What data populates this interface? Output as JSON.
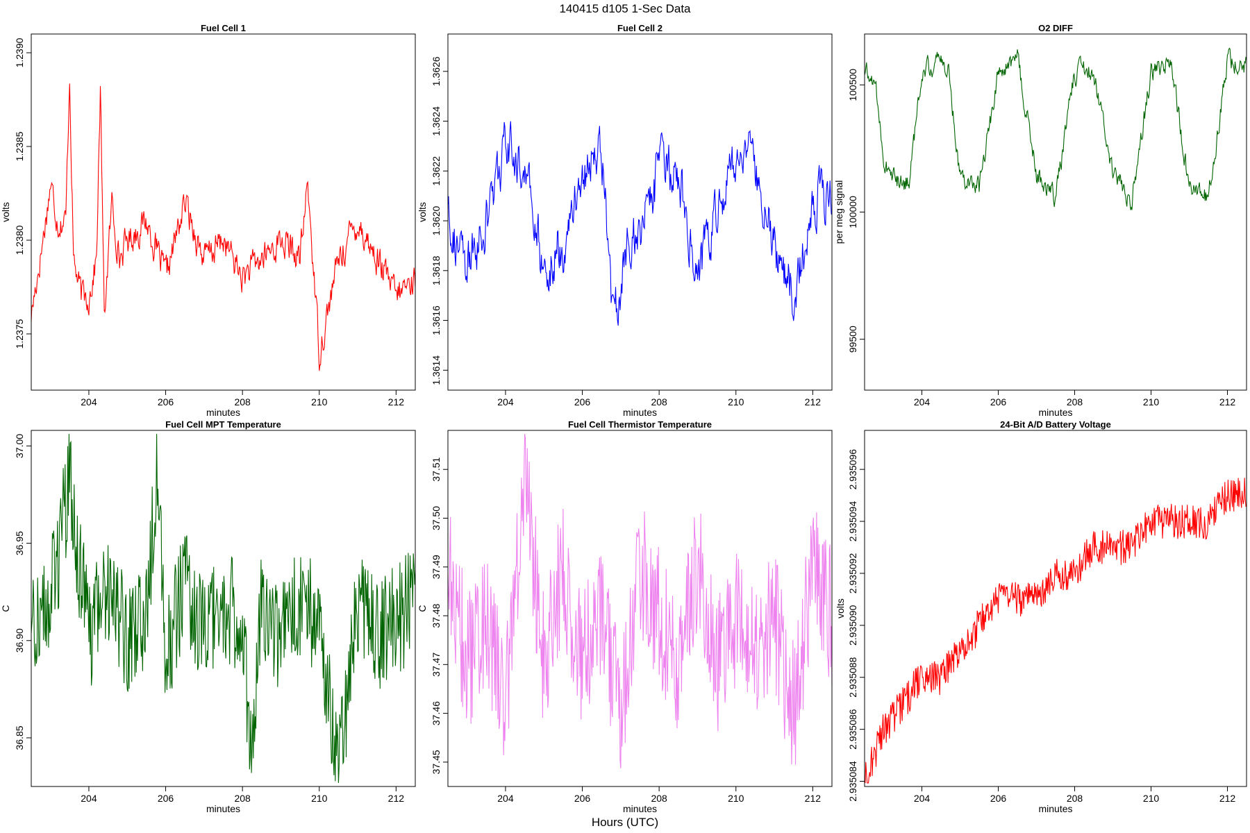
{
  "figure": {
    "title": "140415   d105   1-Sec Data",
    "xlabel": "Hours (UTC)"
  },
  "chart_data": [
    {
      "type": "line",
      "title": "Fuel Cell 1",
      "xlabel": "minutes",
      "ylabel": "volts",
      "color": "#ff0000",
      "xlim": [
        202.5,
        212.5
      ],
      "ylim": [
        1.2372,
        1.2391
      ],
      "xticks": [
        204,
        206,
        208,
        210,
        212
      ],
      "yticks": [
        1.2375,
        1.238,
        1.2385,
        1.239
      ],
      "ytick_labels": [
        "1.2375",
        "1.2380",
        "1.2385",
        "1.2390"
      ],
      "x": [
        202.5,
        202.8,
        203.0,
        203.2,
        203.4,
        203.5,
        203.6,
        203.8,
        204.0,
        204.2,
        204.3,
        204.4,
        204.6,
        204.8,
        205.0,
        205.5,
        206.0,
        206.5,
        207.0,
        207.5,
        208.0,
        208.5,
        209.0,
        209.5,
        209.7,
        210.0,
        210.5,
        211.0,
        211.5,
        212.0,
        212.5
      ],
      "values": [
        1.2376,
        1.238,
        1.2383,
        1.2381,
        1.2381,
        1.2389,
        1.2379,
        1.2377,
        1.2377,
        1.2379,
        1.2388,
        1.2376,
        1.2382,
        1.2379,
        1.238,
        1.2381,
        1.2378,
        1.2382,
        1.2379,
        1.238,
        1.2378,
        1.2379,
        1.238,
        1.2379,
        1.2383,
        1.2374,
        1.2379,
        1.2381,
        1.2379,
        1.2377,
        1.2378
      ]
    },
    {
      "type": "line",
      "title": "Fuel Cell 2",
      "xlabel": "minutes",
      "ylabel": "volts",
      "color": "#0000ff",
      "xlim": [
        202.5,
        212.5
      ],
      "ylim": [
        1.36132,
        1.36275
      ],
      "xticks": [
        204,
        206,
        208,
        210,
        212
      ],
      "yticks": [
        1.3614,
        1.3616,
        1.3618,
        1.362,
        1.3622,
        1.3624,
        1.3626
      ],
      "ytick_labels": [
        "1.3614",
        "1.3616",
        "1.3618",
        "1.3620",
        "1.3622",
        "1.3624",
        "1.3626"
      ],
      "x": [
        202.5,
        202.7,
        203.0,
        203.5,
        204.0,
        204.5,
        205.0,
        205.5,
        206.0,
        206.5,
        206.8,
        207.2,
        207.6,
        208.0,
        208.5,
        209.0,
        209.5,
        210.0,
        210.5,
        211.0,
        211.5,
        212.0,
        212.5
      ],
      "values": [
        1.3621,
        1.3619,
        1.3618,
        1.362,
        1.3623,
        1.3622,
        1.3618,
        1.3619,
        1.3622,
        1.3623,
        1.3616,
        1.3619,
        1.362,
        1.3622,
        1.3622,
        1.3618,
        1.362,
        1.3623,
        1.3622,
        1.3619,
        1.3617,
        1.3621,
        1.3621
      ]
    },
    {
      "type": "line",
      "title": "O2 DIFF",
      "xlabel": "minutes",
      "ylabel": "per meg signal",
      "color": "#006400",
      "xlim": [
        202.5,
        212.5
      ],
      "ylim": [
        99300,
        100700
      ],
      "xticks": [
        204,
        206,
        208,
        210,
        212
      ],
      "yticks": [
        99500,
        100000,
        100500
      ],
      "ytick_labels": [
        "99500",
        "100000",
        "100500"
      ],
      "x": [
        202.5,
        202.8,
        203.0,
        203.2,
        203.5,
        203.7,
        204.0,
        204.5,
        204.7,
        205.0,
        205.5,
        206.0,
        206.5,
        207.0,
        207.5,
        208.0,
        208.5,
        209.0,
        209.5,
        210.0,
        210.5,
        211.0,
        211.5,
        212.0,
        212.5
      ],
      "values": [
        100550,
        100500,
        100200,
        100150,
        100100,
        100150,
        100550,
        100600,
        100550,
        100150,
        100100,
        100550,
        100600,
        100150,
        100050,
        100550,
        100550,
        100150,
        100050,
        100550,
        100600,
        100100,
        100050,
        100600,
        100580
      ]
    },
    {
      "type": "line",
      "title": "Fuel Cell MPT Temperature",
      "xlabel": "minutes",
      "ylabel": "C",
      "color": "#006400",
      "xlim": [
        202.5,
        212.5
      ],
      "ylim": [
        36.825,
        37.008
      ],
      "xticks": [
        204,
        206,
        208,
        210,
        212
      ],
      "yticks": [
        36.85,
        36.9,
        36.95,
        37.0
      ],
      "ytick_labels": [
        "36.85",
        "36.90",
        "36.95",
        "37.00"
      ],
      "x": [
        202.5,
        203.0,
        203.5,
        204.0,
        204.5,
        205.0,
        205.5,
        205.8,
        206.0,
        206.5,
        207.0,
        207.5,
        208.0,
        208.2,
        208.5,
        209.0,
        209.5,
        210.0,
        210.5,
        211.0,
        211.5,
        212.0,
        212.5
      ],
      "values": [
        36.91,
        36.92,
        36.98,
        36.9,
        36.93,
        36.9,
        36.91,
        37.0,
        36.89,
        36.93,
        36.9,
        36.92,
        36.91,
        36.84,
        36.92,
        36.9,
        36.92,
        36.91,
        36.83,
        36.92,
        36.9,
        36.91,
        36.92
      ]
    },
    {
      "type": "line",
      "title": "Fuel Cell Thermistor Temperature",
      "xlabel": "minutes",
      "ylabel": "C",
      "color": "#ee82ee",
      "xlim": [
        202.5,
        212.5
      ],
      "ylim": [
        37.445,
        37.518
      ],
      "xticks": [
        204,
        206,
        208,
        210,
        212
      ],
      "yticks": [
        37.45,
        37.46,
        37.47,
        37.48,
        37.49,
        37.5,
        37.51
      ],
      "ytick_labels": [
        "37.45",
        "37.46",
        "37.47",
        "37.48",
        "37.49",
        "37.50",
        "37.51"
      ],
      "x": [
        202.5,
        203.0,
        203.5,
        204.0,
        204.5,
        205.0,
        205.5,
        206.0,
        206.5,
        207.0,
        207.5,
        208.0,
        208.5,
        209.0,
        209.5,
        210.0,
        210.5,
        211.0,
        211.5,
        212.0,
        212.5
      ],
      "values": [
        37.49,
        37.47,
        37.48,
        37.46,
        37.51,
        37.47,
        37.49,
        37.47,
        37.48,
        37.46,
        37.49,
        37.48,
        37.47,
        37.49,
        37.47,
        37.48,
        37.47,
        37.48,
        37.46,
        37.49,
        37.48
      ]
    },
    {
      "type": "line",
      "title": "24-Bit A/D Battery Voltage",
      "xlabel": "minutes",
      "ylabel": "volts",
      "color": "#ff0000",
      "xlim": [
        202.5,
        212.5
      ],
      "ylim": [
        2.9350838,
        2.9350975
      ],
      "xticks": [
        204,
        206,
        208,
        210,
        212
      ],
      "yticks": [
        2.935084,
        2.935086,
        2.935088,
        2.93509,
        2.935092,
        2.935094,
        2.935096
      ],
      "ytick_labels": [
        "2.935084",
        "2.935086",
        "2.935088",
        "2.935090",
        "2.935092",
        "2.935094",
        "2.935096"
      ],
      "x": [
        202.5,
        203.0,
        203.5,
        204.0,
        204.5,
        205.0,
        205.5,
        206.0,
        206.5,
        207.0,
        207.5,
        208.0,
        208.5,
        209.0,
        209.5,
        210.0,
        210.5,
        211.0,
        211.5,
        212.0,
        212.5
      ],
      "values": [
        2.935084,
        2.935086,
        2.935087,
        2.935088,
        2.935088,
        2.935089,
        2.93509,
        2.935091,
        2.935091,
        2.935091,
        2.935092,
        2.935092,
        2.935093,
        2.935093,
        2.935093,
        2.935094,
        2.935094,
        2.935094,
        2.935094,
        2.935095,
        2.935095
      ]
    }
  ]
}
